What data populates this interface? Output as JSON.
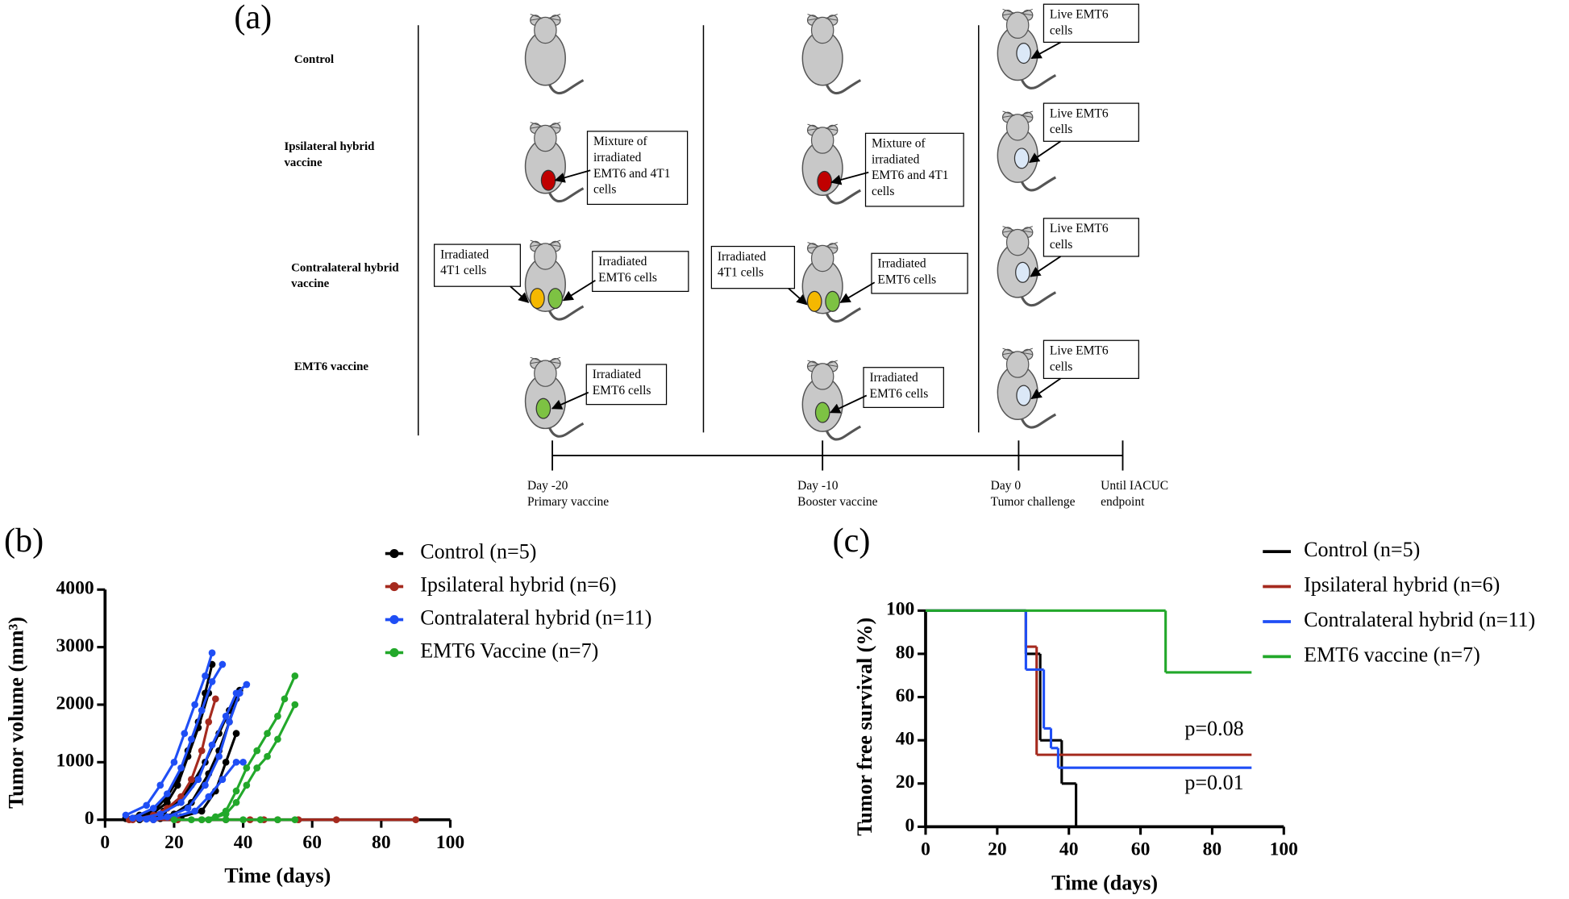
{
  "diagram": {
    "panel_label": "(a)",
    "row_labels": [
      [
        "Control"
      ],
      [
        "Ipsilateral hybrid",
        "vaccine"
      ],
      [
        "Contralateral hybrid",
        "vaccine"
      ],
      [
        "EMT6 vaccine"
      ]
    ],
    "boxes": [
      [
        "Mixture of",
        "irradiated",
        "EMT6 and 4T1",
        "cells"
      ],
      [
        "Irradiated",
        "4T1 cells"
      ],
      [
        "Irradiated",
        "EMT6 cells"
      ],
      [
        "Irradiated",
        "EMT6 cells"
      ],
      [
        "Mixture of",
        "irradiated",
        "EMT6 and 4T1",
        "cells"
      ],
      [
        "Irradiated",
        "4T1 cells"
      ],
      [
        "Irradiated",
        "EMT6 cells"
      ],
      [
        "Irradiated",
        "EMT6 cells"
      ],
      [
        "Live EMT6",
        "cells"
      ],
      [
        "Live EMT6",
        "cells"
      ],
      [
        "Live EMT6",
        "cells"
      ],
      [
        "Live EMT6",
        "cells"
      ]
    ],
    "timeline": [
      [
        "Day -20",
        "Primary vaccine"
      ],
      [
        "Day -10",
        "Booster vaccine"
      ],
      [
        "Day 0",
        "Tumor challenge"
      ],
      [
        "Until IACUC",
        "endpoint"
      ]
    ]
  },
  "chart_data": [
    {
      "type": "line",
      "panel_label": "(b)",
      "x_label": "Time (days)",
      "y_label": "Tumor volume (mm³)",
      "xlim": [
        0,
        100
      ],
      "xticks": [
        0,
        20,
        40,
        60,
        80,
        100
      ],
      "ylim": [
        0,
        4000
      ],
      "yticks": [
        0,
        1000,
        2000,
        3000,
        4000
      ],
      "series": [
        {
          "name": "Control (n=5)",
          "color": "#000000",
          "mice": [
            {
              "x": [
                6,
                10,
                14,
                18,
                21,
                24,
                27,
                29,
                31
              ],
              "values": [
                30,
                80,
                150,
                400,
                700,
                1200,
                1700,
                2200,
                2700
              ]
            },
            {
              "x": [
                6,
                10,
                14,
                18,
                21,
                24,
                27,
                30
              ],
              "values": [
                20,
                60,
                120,
                300,
                600,
                1100,
                1600,
                2200
              ]
            },
            {
              "x": [
                8,
                13,
                17,
                21,
                25,
                29,
                33,
                36,
                39
              ],
              "values": [
                10,
                50,
                150,
                300,
                600,
                1000,
                1500,
                1900,
                2250
              ]
            },
            {
              "x": [
                10,
                15,
                20,
                25,
                30,
                33,
                36,
                38
              ],
              "values": [
                10,
                40,
                100,
                300,
                800,
                1200,
                1700,
                2100
              ]
            },
            {
              "x": [
                10,
                16,
                22,
                28,
                32,
                35,
                38
              ],
              "values": [
                0,
                20,
                50,
                150,
                500,
                1000,
                1500
              ]
            }
          ]
        },
        {
          "name": "Ipsilateral hybrid (n=6)",
          "color": "#a52a1e",
          "mice": [
            {
              "x": [
                8,
                14,
                18,
                22,
                25,
                28,
                30,
                32
              ],
              "values": [
                0,
                80,
                200,
                400,
                700,
                1200,
                1700,
                2100
              ]
            },
            {
              "x": [
                7,
                14,
                21,
                28,
                35,
                42,
                46,
                50,
                56,
                67,
                90
              ],
              "values": [
                0,
                0,
                0,
                0,
                0,
                0,
                0,
                0,
                0,
                0,
                0
              ]
            }
          ]
        },
        {
          "name": "Contralateral hybrid (n=11)",
          "color": "#1f4ef5",
          "mice": [
            {
              "x": [
                6,
                12,
                16,
                20,
                23,
                26,
                29,
                31
              ],
              "values": [
                80,
                250,
                600,
                1000,
                1500,
                2000,
                2500,
                2900
              ]
            },
            {
              "x": [
                8,
                14,
                18,
                22,
                25,
                28,
                31,
                34
              ],
              "values": [
                30,
                200,
                450,
                900,
                1400,
                1900,
                2400,
                2700
              ]
            },
            {
              "x": [
                10,
                16,
                22,
                27,
                31,
                35,
                38,
                41
              ],
              "values": [
                20,
                100,
                300,
                700,
                1300,
                1800,
                2200,
                2350
              ]
            },
            {
              "x": [
                12,
                18,
                24,
                29,
                33,
                36,
                39
              ],
              "values": [
                10,
                50,
                200,
                600,
                1100,
                1700,
                2200
              ]
            },
            {
              "x": [
                14,
                20,
                26,
                30,
                34,
                38,
                40
              ],
              "values": [
                0,
                50,
                150,
                400,
                700,
                1000,
                1000
              ]
            }
          ]
        },
        {
          "name": "EMT6 Vaccine (n=7)",
          "color": "#22a82a",
          "mice": [
            {
              "x": [
                20,
                28,
                32,
                35,
                38,
                41,
                44,
                47,
                50,
                52,
                55
              ],
              "values": [
                0,
                0,
                50,
                150,
                500,
                900,
                1200,
                1500,
                1800,
                2100,
                2500
              ]
            },
            {
              "x": [
                30,
                35,
                38,
                41,
                44,
                47,
                50,
                55
              ],
              "values": [
                0,
                100,
                300,
                600,
                900,
                1100,
                1400,
                2000
              ]
            },
            {
              "x": [
                25,
                30,
                35,
                40,
                45,
                50,
                55
              ],
              "values": [
                0,
                0,
                0,
                0,
                0,
                0,
                0
              ]
            }
          ]
        }
      ]
    },
    {
      "type": "step",
      "panel_label": "(c)",
      "x_label": "Time (days)",
      "y_label": "Tumor free survival (%)",
      "xlim": [
        0,
        100
      ],
      "xticks": [
        0,
        20,
        40,
        60,
        80,
        100
      ],
      "ylim": [
        0,
        100
      ],
      "yticks": [
        0,
        20,
        40,
        60,
        80,
        100
      ],
      "series": [
        {
          "name": "Control (n=5)",
          "color": "#000000",
          "x": [
            0,
            28,
            32,
            38,
            42
          ],
          "values": [
            100,
            80,
            40,
            20,
            0
          ]
        },
        {
          "name": "Ipsilateral hybrid (n=6)",
          "color": "#a52a1e",
          "x": [
            0,
            28,
            31,
            91
          ],
          "values": [
            100,
            83.3,
            33.3,
            33.3
          ]
        },
        {
          "name": "Contralateral hybrid (n=11)",
          "color": "#1f4ef5",
          "x": [
            0,
            28,
            33,
            35,
            37,
            91
          ],
          "values": [
            100,
            72.7,
            45.5,
            36.4,
            27.3,
            27.3
          ]
        },
        {
          "name": "EMT6 vaccine (n=7)",
          "color": "#22a82a",
          "x": [
            0,
            67,
            91
          ],
          "values": [
            100,
            71.4,
            71.4
          ]
        }
      ],
      "annotations": [
        "p=0.08",
        "p=0.01"
      ]
    }
  ]
}
